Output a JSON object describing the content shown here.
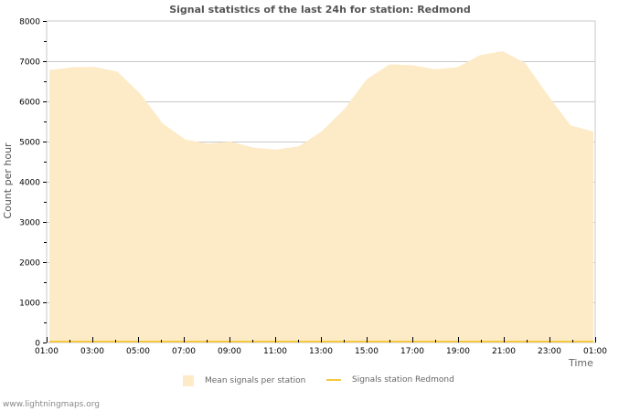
{
  "title": "Signal statistics of the last 24h for station: Redmond",
  "axes": {
    "ylabel": "Count per hour",
    "xlabel": "Time"
  },
  "legend": {
    "mean_label": "Mean signals per station",
    "station_label": "Signals station Redmond"
  },
  "footer": "www.lightningmaps.org",
  "colors": {
    "mean_fill": "#fdebc8",
    "station_line": "#f5c842",
    "grid": "#c8c8c8",
    "border": "#c8c8c8"
  },
  "chart_data": {
    "type": "area",
    "title": "Signal statistics of the last 24h for station: Redmond",
    "xlabel": "Time",
    "ylabel": "Count per hour",
    "ylim": [
      0,
      8000
    ],
    "yticks": [
      0,
      1000,
      2000,
      3000,
      4000,
      5000,
      6000,
      7000,
      8000
    ],
    "xticks": [
      "01:00",
      "03:00",
      "05:00",
      "07:00",
      "09:00",
      "11:00",
      "13:00",
      "15:00",
      "17:00",
      "19:00",
      "21:00",
      "23:00",
      "01:00"
    ],
    "grid": true,
    "legend_position": "bottom",
    "x": [
      "01:00",
      "02:00",
      "03:00",
      "04:00",
      "05:00",
      "06:00",
      "07:00",
      "08:00",
      "09:00",
      "10:00",
      "11:00",
      "12:00",
      "13:00",
      "14:00",
      "15:00",
      "16:00",
      "17:00",
      "18:00",
      "19:00",
      "20:00",
      "21:00",
      "22:00",
      "23:00",
      "00:00",
      "01:00"
    ],
    "series": [
      {
        "name": "Mean signals per station",
        "style": "area",
        "values": [
          6780,
          6850,
          6860,
          6740,
          6200,
          5450,
          5050,
          4950,
          5000,
          4850,
          4800,
          4880,
          5250,
          5800,
          6550,
          6920,
          6900,
          6800,
          6850,
          7150,
          7250,
          6950,
          6150,
          5400,
          5250
        ]
      },
      {
        "name": "Signals station Redmond",
        "style": "line",
        "values": [
          0,
          0,
          0,
          0,
          0,
          0,
          0,
          0,
          0,
          0,
          0,
          0,
          0,
          0,
          0,
          0,
          0,
          0,
          0,
          0,
          0,
          0,
          0,
          0,
          0
        ]
      }
    ]
  }
}
